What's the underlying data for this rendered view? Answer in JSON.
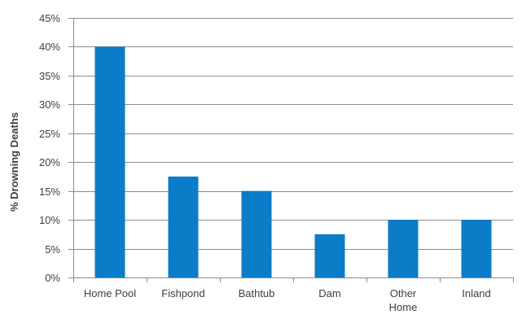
{
  "chart_data": {
    "type": "bar",
    "categories": [
      "Home Pool",
      "Fishpond",
      "Bathtub",
      "Dam",
      "Other Home",
      "Inland"
    ],
    "category_lines": [
      [
        "Home Pool"
      ],
      [
        "Fishpond"
      ],
      [
        "Bathtub"
      ],
      [
        "Dam"
      ],
      [
        "Other",
        "Home"
      ],
      [
        "Inland"
      ]
    ],
    "values": [
      40,
      17.5,
      15,
      7.5,
      10,
      10
    ],
    "ylabel": "% Drowning Deaths",
    "xlabel": "",
    "ylim": [
      0,
      45
    ],
    "yticks": [
      0,
      5,
      10,
      15,
      20,
      25,
      30,
      35,
      40,
      45
    ],
    "ytick_labels": [
      "0%",
      "5%",
      "10%",
      "15%",
      "20%",
      "25%",
      "30%",
      "35%",
      "40%",
      "45%"
    ],
    "grid": true,
    "bar_color": "#0A7CC8",
    "grid_color": "#8C8C8C"
  }
}
